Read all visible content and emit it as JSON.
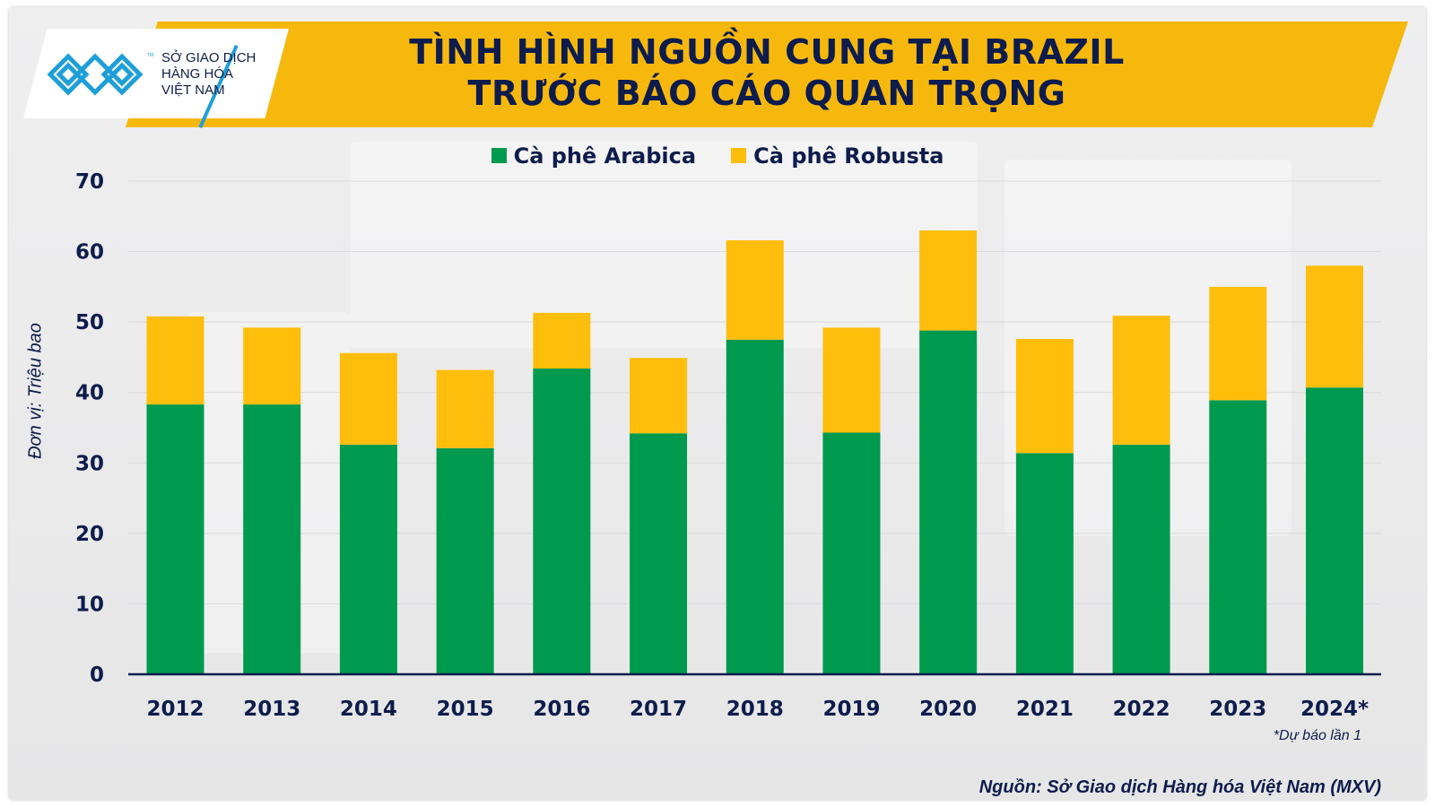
{
  "header": {
    "title_line1": "TÌNH HÌNH NGUỒN CUNG TẠI BRAZIL",
    "title_line2": "TRƯỚC BÁO CÁO QUAN TRỌNG"
  },
  "logo": {
    "line1": "SỞ GIAO DỊCH",
    "line2": "HÀNG HÓA",
    "line3": "VIỆT NAM",
    "tm": "TM",
    "icon": "mxv-logo-icon"
  },
  "colors": {
    "arabica": "#009a4e",
    "robusta": "#ffbe0b",
    "banner": "#f7b80e",
    "text": "#0d1c4c",
    "logo_blue": "#1e9fd8"
  },
  "chart_data": {
    "type": "bar",
    "stacked": true,
    "title": "TÌNH HÌNH NGUỒN CUNG TẠI BRAZIL TRƯỚC BÁO CÁO QUAN TRỌNG",
    "xlabel": "",
    "ylabel": "Đơn vị: Triệu bao",
    "ylim": [
      0,
      70
    ],
    "yticks": [
      0,
      10,
      20,
      30,
      40,
      50,
      60,
      70
    ],
    "grid": true,
    "legend_position": "top-center",
    "categories": [
      "2012",
      "2013",
      "2014",
      "2015",
      "2016",
      "2017",
      "2018",
      "2019",
      "2020",
      "2021",
      "2022",
      "2023",
      "2024*"
    ],
    "series": [
      {
        "name": "Cà phê Arabica",
        "color": "#009a4e",
        "values": [
          38.3,
          38.3,
          32.6,
          32.1,
          43.4,
          34.2,
          47.5,
          34.3,
          48.8,
          31.4,
          32.6,
          38.9,
          40.7
        ]
      },
      {
        "name": "Cà phê Robusta",
        "color": "#ffbe0b",
        "values": [
          12.5,
          10.9,
          13.0,
          11.1,
          7.9,
          10.7,
          14.1,
          14.9,
          14.2,
          16.2,
          18.3,
          16.1,
          17.3
        ]
      }
    ],
    "annotations": [
      "*Dự báo lần 1"
    ]
  },
  "footer": {
    "note": "*Dự báo lần 1",
    "source": "Nguồn: Sở Giao dịch Hàng hóa Việt Nam (MXV)"
  }
}
